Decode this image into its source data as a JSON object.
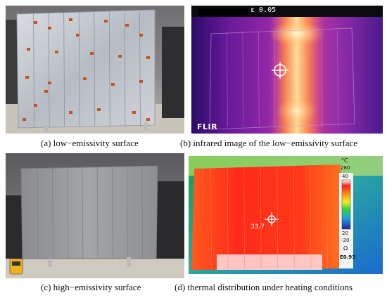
{
  "panels": {
    "a": {
      "caption": "(a) low−emissivity surface"
    },
    "b": {
      "caption": "(b) infrared image of the low−emissivity surface",
      "emissivity_readout": "ε 0.05",
      "brand": "FLIR",
      "icon": "crosshair-icon"
    },
    "c": {
      "caption": "(c) high−emissivity surface"
    },
    "d": {
      "caption": "(d) thermal distribution under heating conditions",
      "spot_value": "33.7",
      "scale": {
        "unit": "°C",
        "max": "280",
        "top": "40",
        "l20": "20",
        "low": "-20",
        "emissivity": "E0.93",
        "letter": "Ω"
      }
    }
  },
  "colors": {
    "ironbow_cold": "#3a0a7a",
    "ironbow_hot": "#fff2b0",
    "rainbow_hot": "#ff2a1a"
  }
}
